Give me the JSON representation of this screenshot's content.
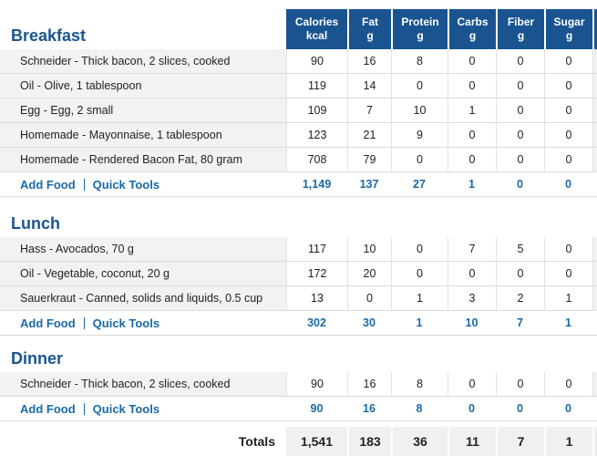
{
  "columns": [
    {
      "name": "Calories",
      "unit": "kcal"
    },
    {
      "name": "Fat",
      "unit": "g"
    },
    {
      "name": "Protein",
      "unit": "g"
    },
    {
      "name": "Carbs",
      "unit": "g"
    },
    {
      "name": "Fiber",
      "unit": "g"
    },
    {
      "name": "Sugar",
      "unit": "g"
    }
  ],
  "add_food_label": "Add Food",
  "quick_tools_label": "Quick Tools",
  "meals": [
    {
      "title": "Breakfast",
      "foods": [
        {
          "name": "Schneider - Thick bacon, 2 slices, cooked",
          "values": [
            "90",
            "16",
            "8",
            "0",
            "0",
            "0"
          ]
        },
        {
          "name": "Oil - Olive, 1 tablespoon",
          "values": [
            "119",
            "14",
            "0",
            "0",
            "0",
            "0"
          ]
        },
        {
          "name": "Egg - Egg, 2 small",
          "values": [
            "109",
            "7",
            "10",
            "1",
            "0",
            "0"
          ]
        },
        {
          "name": "Homemade - Mayonnaise, 1 tablespoon",
          "values": [
            "123",
            "21",
            "9",
            "0",
            "0",
            "0"
          ]
        },
        {
          "name": "Homemade - Rendered Bacon Fat, 80 gram",
          "values": [
            "708",
            "79",
            "0",
            "0",
            "0",
            "0"
          ]
        }
      ],
      "totals": [
        "1,149",
        "137",
        "27",
        "1",
        "0",
        "0"
      ]
    },
    {
      "title": "Lunch",
      "foods": [
        {
          "name": "Hass - Avocados, 70 g",
          "values": [
            "117",
            "10",
            "0",
            "7",
            "5",
            "0"
          ]
        },
        {
          "name": "Oil - Vegetable, coconut, 20 g",
          "values": [
            "172",
            "20",
            "0",
            "0",
            "0",
            "0"
          ]
        },
        {
          "name": "Sauerkraut - Canned, solids and liquids, 0.5 cup",
          "values": [
            "13",
            "0",
            "1",
            "3",
            "2",
            "1"
          ]
        }
      ],
      "totals": [
        "302",
        "30",
        "1",
        "10",
        "7",
        "1"
      ]
    },
    {
      "title": "Dinner",
      "foods": [
        {
          "name": "Schneider - Thick bacon, 2 slices, cooked",
          "values": [
            "90",
            "16",
            "8",
            "0",
            "0",
            "0"
          ]
        }
      ],
      "totals": [
        "90",
        "16",
        "8",
        "0",
        "0",
        "0"
      ]
    }
  ],
  "grand_totals": {
    "label": "Totals",
    "values": [
      "1,541",
      "183",
      "36",
      "11",
      "7",
      "1"
    ]
  },
  "colors": {
    "header_bg": "#1a5490",
    "link": "#1a6aa6",
    "meal_title": "#1a5490"
  }
}
